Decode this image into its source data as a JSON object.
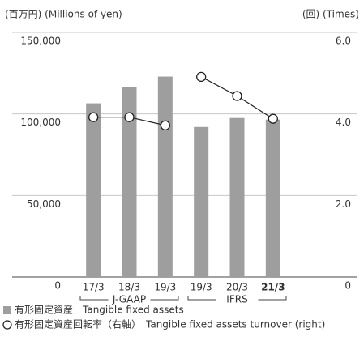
{
  "chart_data": {
    "type": "bar_line",
    "y_label": "(百万円) (Millions of yen)",
    "y2_label": "(回) (Times)",
    "categories": [
      "17/3",
      "18/3",
      "19/3",
      "19/3",
      "20/3",
      "21/3"
    ],
    "category_groups": [
      "J-GAAP",
      "J-GAAP",
      "J-GAAP",
      "IFRS",
      "IFRS",
      "IFRS"
    ],
    "ylim": [
      0,
      150000
    ],
    "yticks": [
      0,
      {
        "value": 50000,
        "label": "50,000"
      },
      {
        "value": 100000,
        "label": "100,000"
      },
      {
        "value": 150000,
        "label": "150,000"
      }
    ],
    "y2lim": [
      0,
      6
    ],
    "y2ticks": [
      0,
      {
        "value": 2,
        "label": "2.0"
      },
      {
        "value": 4,
        "label": "4.0"
      },
      {
        "value": 6,
        "label": "6.0"
      }
    ],
    "grid": true,
    "series": [
      {
        "name": "有形固定資産　Tangible fixed assets",
        "type": "bar",
        "color": "#9e9e9e",
        "values": [
          106500,
          116400,
          122900,
          92000,
          97500,
          96500
        ]
      },
      {
        "name": "有形固定資産回転率（右軸）　Tangible fixed assets turnover (right)",
        "type": "line",
        "axis": "y2",
        "color": "#222222",
        "values": [
          3.92,
          3.92,
          3.72,
          4.91,
          4.44,
          3.88
        ]
      }
    ]
  }
}
